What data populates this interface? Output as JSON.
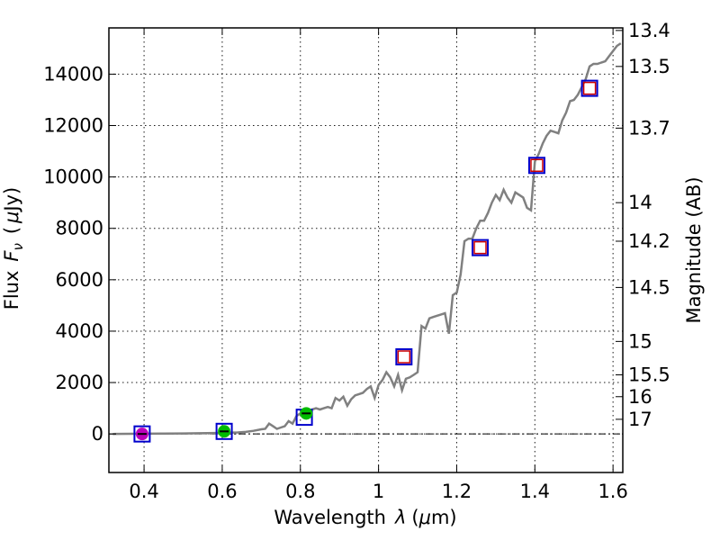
{
  "chart_data": {
    "type": "line",
    "xlabel_text": "Wavelength",
    "xlabel_symbol": "λ",
    "xlabel_unit_open": "(",
    "xlabel_unit_mu": "μ",
    "xlabel_unit_rest": "m)",
    "ylabel_text": "Flux",
    "ylabel_symbol": "F",
    "ylabel_sub": "ν",
    "ylabel_unit_open": "(",
    "ylabel_unit_mu": "μ",
    "ylabel_unit_rest": "Jy)",
    "y2label": "Magnitude (AB)",
    "xlim": [
      0.31,
      1.625
    ],
    "ylim": [
      -1500,
      15800
    ],
    "xticks": [
      0.4,
      0.6,
      0.8,
      1.0,
      1.2,
      1.4,
      1.6
    ],
    "xtick_labels": [
      "0.4",
      "0.6",
      "0.8",
      "1",
      "1.2",
      "1.4",
      "1.6"
    ],
    "yticks": [
      0,
      2000,
      4000,
      6000,
      8000,
      10000,
      12000,
      14000
    ],
    "ytick_labels": [
      "0",
      "2000",
      "4000",
      "6000",
      "8000",
      "10000",
      "12000",
      "14000"
    ],
    "y2ticks": [
      {
        "label": "13.4",
        "flux": 15700
      },
      {
        "label": "13.5",
        "flux": 14300
      },
      {
        "label": "13.7",
        "flux": 11900
      },
      {
        "label": "14",
        "flux": 9000
      },
      {
        "label": "14.2",
        "flux": 7500
      },
      {
        "label": "14.5",
        "flux": 5700
      },
      {
        "label": "15",
        "flux": 3600
      },
      {
        "label": "15.5",
        "flux": 2300
      },
      {
        "label": "16",
        "flux": 1450
      },
      {
        "label": "17",
        "flux": 570
      }
    ],
    "grid": true,
    "series": [
      {
        "name": "spectrum",
        "color": "#808080",
        "x": [
          0.32,
          0.4,
          0.5,
          0.6,
          0.64,
          0.66,
          0.68,
          0.7,
          0.71,
          0.72,
          0.73,
          0.74,
          0.75,
          0.76,
          0.77,
          0.78,
          0.79,
          0.8,
          0.81,
          0.82,
          0.83,
          0.84,
          0.85,
          0.86,
          0.87,
          0.88,
          0.89,
          0.9,
          0.91,
          0.92,
          0.93,
          0.94,
          0.95,
          0.96,
          0.97,
          0.98,
          0.99,
          1.0,
          1.01,
          1.02,
          1.03,
          1.04,
          1.05,
          1.06,
          1.07,
          1.08,
          1.09,
          1.1,
          1.11,
          1.12,
          1.13,
          1.14,
          1.15,
          1.16,
          1.17,
          1.18,
          1.19,
          1.2,
          1.21,
          1.22,
          1.23,
          1.24,
          1.25,
          1.26,
          1.27,
          1.28,
          1.29,
          1.3,
          1.31,
          1.32,
          1.33,
          1.34,
          1.35,
          1.36,
          1.37,
          1.38,
          1.39,
          1.4,
          1.41,
          1.42,
          1.43,
          1.44,
          1.45,
          1.46,
          1.47,
          1.48,
          1.49,
          1.5,
          1.51,
          1.52,
          1.53,
          1.54,
          1.55,
          1.56,
          1.57,
          1.58,
          1.59,
          1.6,
          1.61,
          1.62
        ],
        "values": [
          0,
          10,
          20,
          40,
          60,
          80,
          120,
          180,
          200,
          400,
          300,
          200,
          250,
          300,
          500,
          400,
          700,
          800,
          900,
          850,
          950,
          1000,
          950,
          1000,
          1050,
          1000,
          1400,
          1300,
          1450,
          1100,
          1350,
          1500,
          1550,
          1600,
          1750,
          1850,
          1400,
          1900,
          2100,
          2400,
          2200,
          1850,
          2300,
          1700,
          2150,
          2200,
          2300,
          2400,
          4200,
          4100,
          4500,
          4550,
          4600,
          4650,
          4700,
          3900,
          5400,
          5500,
          6200,
          7500,
          7600,
          7600,
          8000,
          8300,
          8300,
          8600,
          9000,
          9300,
          9100,
          9500,
          9200,
          9000,
          9400,
          9300,
          9200,
          8800,
          8700,
          10600,
          10900,
          11300,
          11600,
          11800,
          11750,
          11700,
          12200,
          12500,
          12950,
          13000,
          13200,
          13500,
          13800,
          14300,
          14400,
          14400,
          14450,
          14500,
          14700,
          14900,
          15100,
          15200
        ]
      }
    ],
    "squares_blue": [
      {
        "x": 0.395,
        "y": 0
      },
      {
        "x": 0.605,
        "y": 100
      },
      {
        "x": 0.81,
        "y": 650
      },
      {
        "x": 1.065,
        "y": 3000
      },
      {
        "x": 1.26,
        "y": 7250
      },
      {
        "x": 1.405,
        "y": 10450
      },
      {
        "x": 1.54,
        "y": 13450
      }
    ],
    "squares_red": [
      {
        "x": 1.065,
        "y": 3000
      },
      {
        "x": 1.26,
        "y": 7250
      },
      {
        "x": 1.405,
        "y": 10450
      },
      {
        "x": 1.54,
        "y": 13450
      }
    ],
    "points_green": [
      {
        "x": 0.605,
        "y": 100
      },
      {
        "x": 0.815,
        "y": 800
      }
    ],
    "points_magenta": [
      {
        "x": 0.395,
        "y": 0
      }
    ],
    "colors": {
      "line": "#808080",
      "square_blue": "#0000cc",
      "square_red": "#cc0000",
      "dot_green": "#00bb00",
      "dot_magenta": "#bb00bb",
      "errorbar": "#000000"
    }
  }
}
